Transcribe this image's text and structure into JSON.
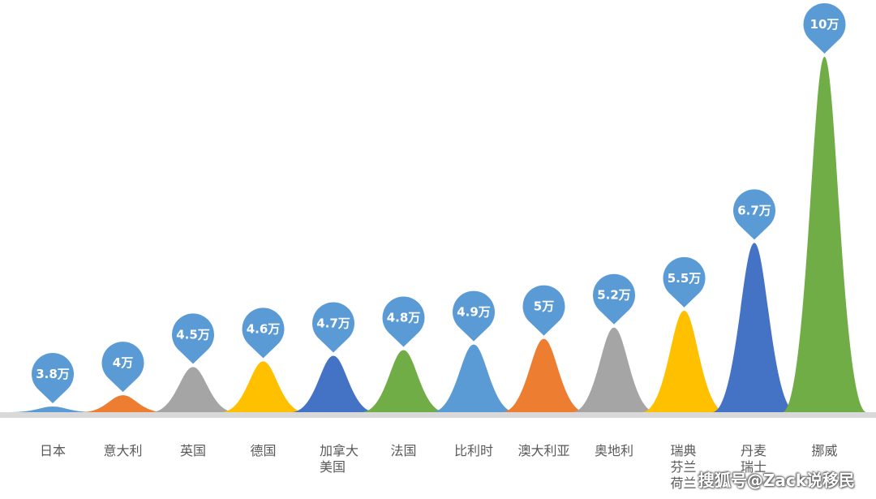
{
  "chart_data": {
    "type": "bar",
    "style": "peak",
    "title": "",
    "xlabel": "",
    "ylabel": "",
    "unit": "万",
    "ylim": [
      3.7,
      10
    ],
    "categories": [
      "日本",
      "意大利",
      "英国",
      "德国",
      "加拿大\n美国",
      "法国",
      "比利时",
      "澳大利亚",
      "奥地利",
      "瑞典\n芬兰\n荷兰",
      "丹麦\n瑞士",
      "挪威"
    ],
    "values": [
      3.8,
      4,
      4.5,
      4.6,
      4.7,
      4.8,
      4.9,
      5,
      5.2,
      5.5,
      6.7,
      10
    ],
    "labels": [
      "3.8万",
      "4万",
      "4.5万",
      "4.6万",
      "4.7万",
      "4.8万",
      "4.9万",
      "5万",
      "5.2万",
      "5.5万",
      "6.7万",
      "10万"
    ],
    "colors": [
      "#5B9BD5",
      "#ED7D31",
      "#A5A5A5",
      "#FFC000",
      "#4472C4",
      "#70AD47",
      "#5B9BD5",
      "#ED7D31",
      "#A5A5A5",
      "#FFC000",
      "#4472C4",
      "#70AD47"
    ],
    "marker_color": "#5B9BD5"
  },
  "watermark": "搜狐号@Zack说移民"
}
